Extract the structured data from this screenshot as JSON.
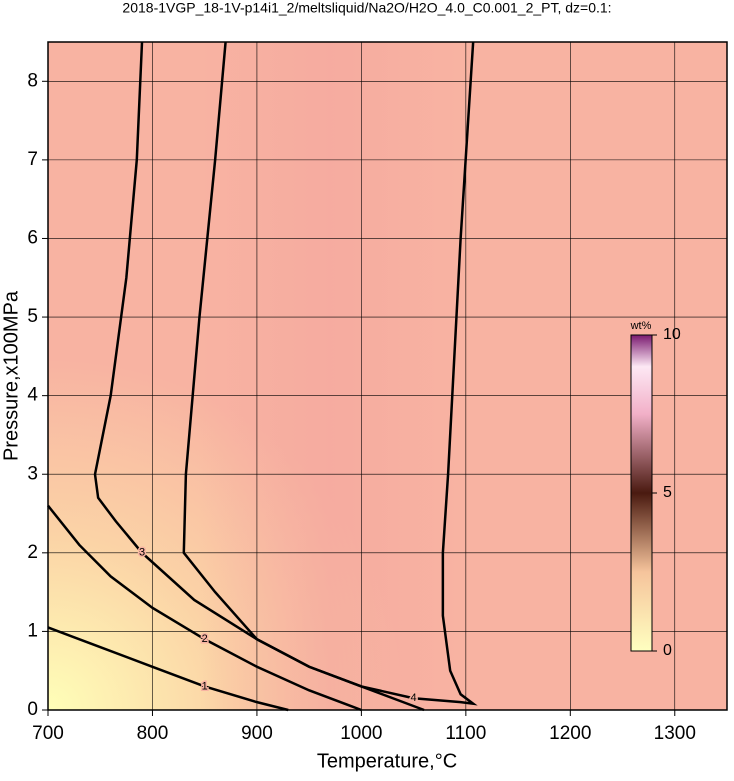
{
  "chart_data": {
    "type": "contour",
    "title": "2018-1VGP_18-1V-p14i1_2/meltsliquid/Na2O/H2O_4.0_C0.001_2_PT, dz=0.1:",
    "x_label": "Temperature,°C",
    "y_label": "Pressure,x100MPa",
    "xlim": [
      700,
      1350
    ],
    "ylim": [
      0,
      8.5
    ],
    "xticks": [
      700,
      800,
      900,
      1000,
      1100,
      1200,
      1300
    ],
    "yticks": [
      0,
      1,
      2,
      3,
      4,
      5,
      6,
      7,
      8
    ],
    "grid": true,
    "series": [
      {
        "name": "1",
        "color": "#000000",
        "x": [
          700,
          740,
          800,
          850,
          900,
          930
        ],
        "values": [
          1.05,
          0.85,
          0.55,
          0.3,
          0.1,
          0
        ]
      },
      {
        "name": "2",
        "color": "#000000",
        "x": [
          700,
          730,
          760,
          800,
          850,
          900,
          950,
          990,
          1000
        ],
        "values": [
          2.6,
          2.1,
          1.7,
          1.3,
          0.9,
          0.55,
          0.25,
          0.05,
          0
        ]
      },
      {
        "name": "3",
        "color": "#000000",
        "x": [
          790,
          785,
          775,
          760,
          745,
          748,
          765,
          790,
          840,
          900,
          950,
          1000,
          1040,
          1060
        ],
        "values": [
          8.5,
          7,
          5.5,
          4,
          3,
          2.7,
          2.4,
          2,
          1.4,
          0.9,
          0.55,
          0.3,
          0.1,
          0
        ]
      },
      {
        "name": "4",
        "color": "#000000",
        "x": [
          870,
          860,
          845,
          832,
          830,
          860,
          900,
          950,
          1000,
          1050,
          1095,
          1107,
          1095,
          1085,
          1078,
          1078,
          1083,
          1095,
          1107
        ],
        "values": [
          8.5,
          7,
          5,
          3,
          2,
          1.5,
          0.9,
          0.55,
          0.3,
          0.15,
          0.1,
          0.08,
          0.2,
          0.5,
          1.2,
          2,
          3,
          6,
          8.5
        ]
      }
    ],
    "colorbar": {
      "label": "wt%",
      "lim": [
        0,
        10
      ],
      "ticks": [
        0,
        5,
        10
      ]
    }
  }
}
